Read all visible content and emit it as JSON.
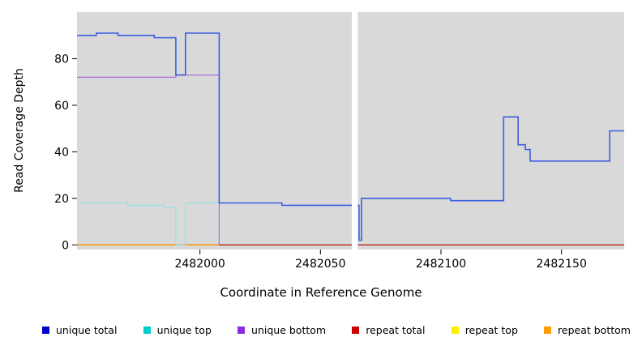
{
  "figure": {
    "background": "#ffffff",
    "plot_background": "#d9d9d9",
    "axis_color": "#000000"
  },
  "chart_data": {
    "type": "line",
    "title": "",
    "xlabel": "Coordinate in Reference Genome",
    "ylabel": "Read Coverage Depth",
    "xlim": [
      2481949,
      2482176
    ],
    "ylim": [
      0,
      100
    ],
    "x_ticks": [
      2482000,
      2482050,
      2482100,
      2482150
    ],
    "y_ticks": [
      0,
      20,
      40,
      60,
      80
    ],
    "grid": false,
    "legend_position": "bottom",
    "gap_band": {
      "x0": 2482063,
      "x1": 2482065.5,
      "color": "#ffffff"
    },
    "draw_order": [
      4,
      3,
      5,
      2,
      1,
      0
    ],
    "series": [
      {
        "name": "unique total",
        "color": "#3a5fdf",
        "legend_color": "#0000cc",
        "width": 1.6,
        "points": [
          [
            2481949,
            90
          ],
          [
            2481957,
            90
          ],
          [
            2481957,
            91
          ],
          [
            2481966,
            91
          ],
          [
            2481966,
            90
          ],
          [
            2481981,
            90
          ],
          [
            2481981,
            89
          ],
          [
            2481990,
            89
          ],
          [
            2481990,
            73
          ],
          [
            2481994,
            73
          ],
          [
            2481994,
            91
          ],
          [
            2482008,
            91
          ],
          [
            2482008,
            18
          ],
          [
            2482034,
            18
          ],
          [
            2482034,
            17
          ],
          [
            2482066,
            17
          ],
          [
            2482066,
            2
          ],
          [
            2482067,
            2
          ],
          [
            2482067,
            20
          ],
          [
            2482104,
            20
          ],
          [
            2482104,
            19
          ],
          [
            2482126,
            19
          ],
          [
            2482126,
            55
          ],
          [
            2482132,
            55
          ],
          [
            2482132,
            43
          ],
          [
            2482135,
            43
          ],
          [
            2482135,
            41
          ],
          [
            2482137,
            41
          ],
          [
            2482137,
            36
          ],
          [
            2482170,
            36
          ],
          [
            2482170,
            49
          ],
          [
            2482176,
            49
          ]
        ]
      },
      {
        "name": "unique top",
        "color": "#8fe4e4",
        "legend_color": "#00cccc",
        "width": 1.2,
        "points": [
          [
            2481949,
            18
          ],
          [
            2481970,
            18
          ],
          [
            2481970,
            17
          ],
          [
            2481985,
            17
          ],
          [
            2481985,
            16
          ],
          [
            2481990,
            16
          ],
          [
            2481990,
            0
          ],
          [
            2481994,
            0
          ],
          [
            2481994,
            18
          ],
          [
            2482008,
            18
          ]
        ]
      },
      {
        "name": "unique bottom",
        "color": "#a96ddb",
        "legend_color": "#8a2be2",
        "width": 1.2,
        "points": [
          [
            2481949,
            72
          ],
          [
            2481990,
            72
          ],
          [
            2481990,
            73
          ],
          [
            2482008,
            73
          ],
          [
            2482008,
            0
          ]
        ]
      },
      {
        "name": "repeat total",
        "color": "#b22222",
        "legend_color": "#cc0000",
        "width": 1.4,
        "points": [
          [
            2481949,
            0
          ],
          [
            2482176,
            0
          ]
        ]
      },
      {
        "name": "repeat top",
        "color": "#ffee00",
        "legend_color": "#ffee00",
        "width": 1.2,
        "points": [
          [
            2481949,
            0
          ],
          [
            2482176,
            0
          ]
        ]
      },
      {
        "name": "repeat bottom",
        "color": "#ff9a00",
        "legend_color": "#ff9a00",
        "width": 1.4,
        "points": [
          [
            2481949,
            0
          ],
          [
            2482008,
            0
          ]
        ]
      }
    ]
  }
}
